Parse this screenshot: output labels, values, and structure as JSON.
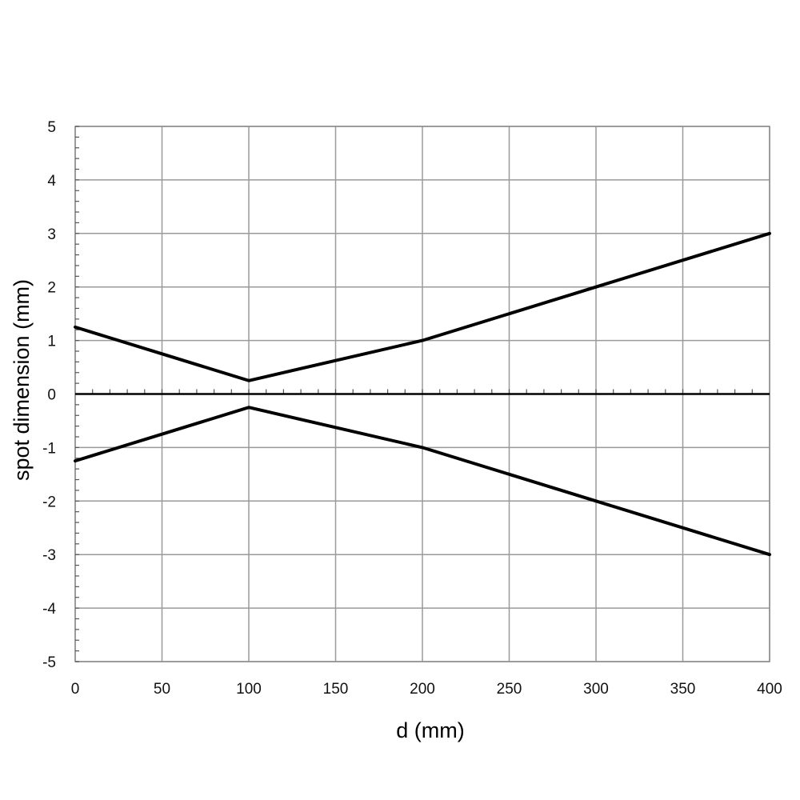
{
  "chart_data": {
    "type": "line",
    "xlabel": "d (mm)",
    "ylabel": "spot dimension (mm)",
    "xlim": [
      0,
      400
    ],
    "ylim": [
      -5,
      5
    ],
    "x_ticks": [
      "0",
      "50",
      "100",
      "150",
      "200",
      "250",
      "300",
      "350",
      "400"
    ],
    "y_ticks": [
      "5",
      "4",
      "3",
      "2",
      "1",
      "0",
      "-1",
      "-2",
      "-3",
      "-4",
      "-5"
    ],
    "grid": true,
    "series": [
      {
        "x": [
          0,
          50,
          100,
          200,
          300,
          400
        ],
        "y": [
          1.25,
          0.75,
          0.25,
          1.0,
          2.0,
          3.0
        ]
      },
      {
        "x": [
          0,
          50,
          80,
          100,
          200,
          300,
          400
        ],
        "y": [
          -1.25,
          -0.75,
          -0.45,
          -0.25,
          -1.0,
          -2.0,
          -3.0
        ]
      }
    ]
  }
}
